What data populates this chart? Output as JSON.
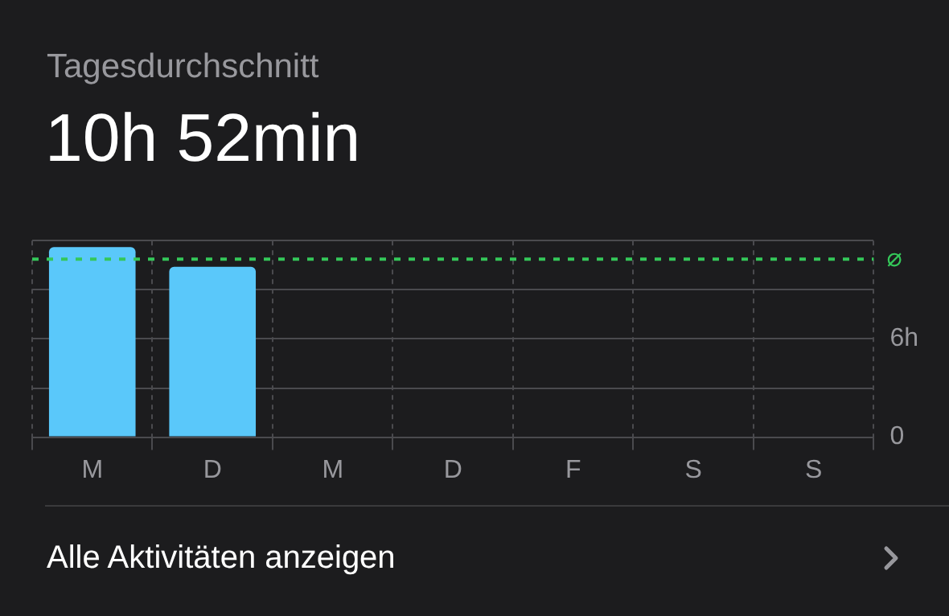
{
  "chart_data": {
    "type": "bar",
    "title": "Tagesdurchschnitt",
    "subtitle": "10h 52min",
    "categories": [
      "M",
      "D",
      "M",
      "D",
      "F",
      "S",
      "S"
    ],
    "values": [
      11.6,
      10.4,
      null,
      null,
      null,
      null,
      null
    ],
    "color": "#5ac8fa",
    "ylim": [
      0,
      12
    ],
    "yticks": [
      0,
      {
        "value": 3,
        "label": null
      },
      {
        "value": 6,
        "label": "6h"
      },
      {
        "value": 9,
        "label": null
      },
      {
        "value": 12,
        "label": null
      }
    ],
    "grid": true,
    "legend": false,
    "ref_lines": [
      {
        "axis": "y",
        "value": 10.87,
        "label": "⌀",
        "color": "#34c759",
        "line_style": "dashed"
      }
    ],
    "annotations": [
      "Alle Aktivitäten anzeigen"
    ]
  }
}
